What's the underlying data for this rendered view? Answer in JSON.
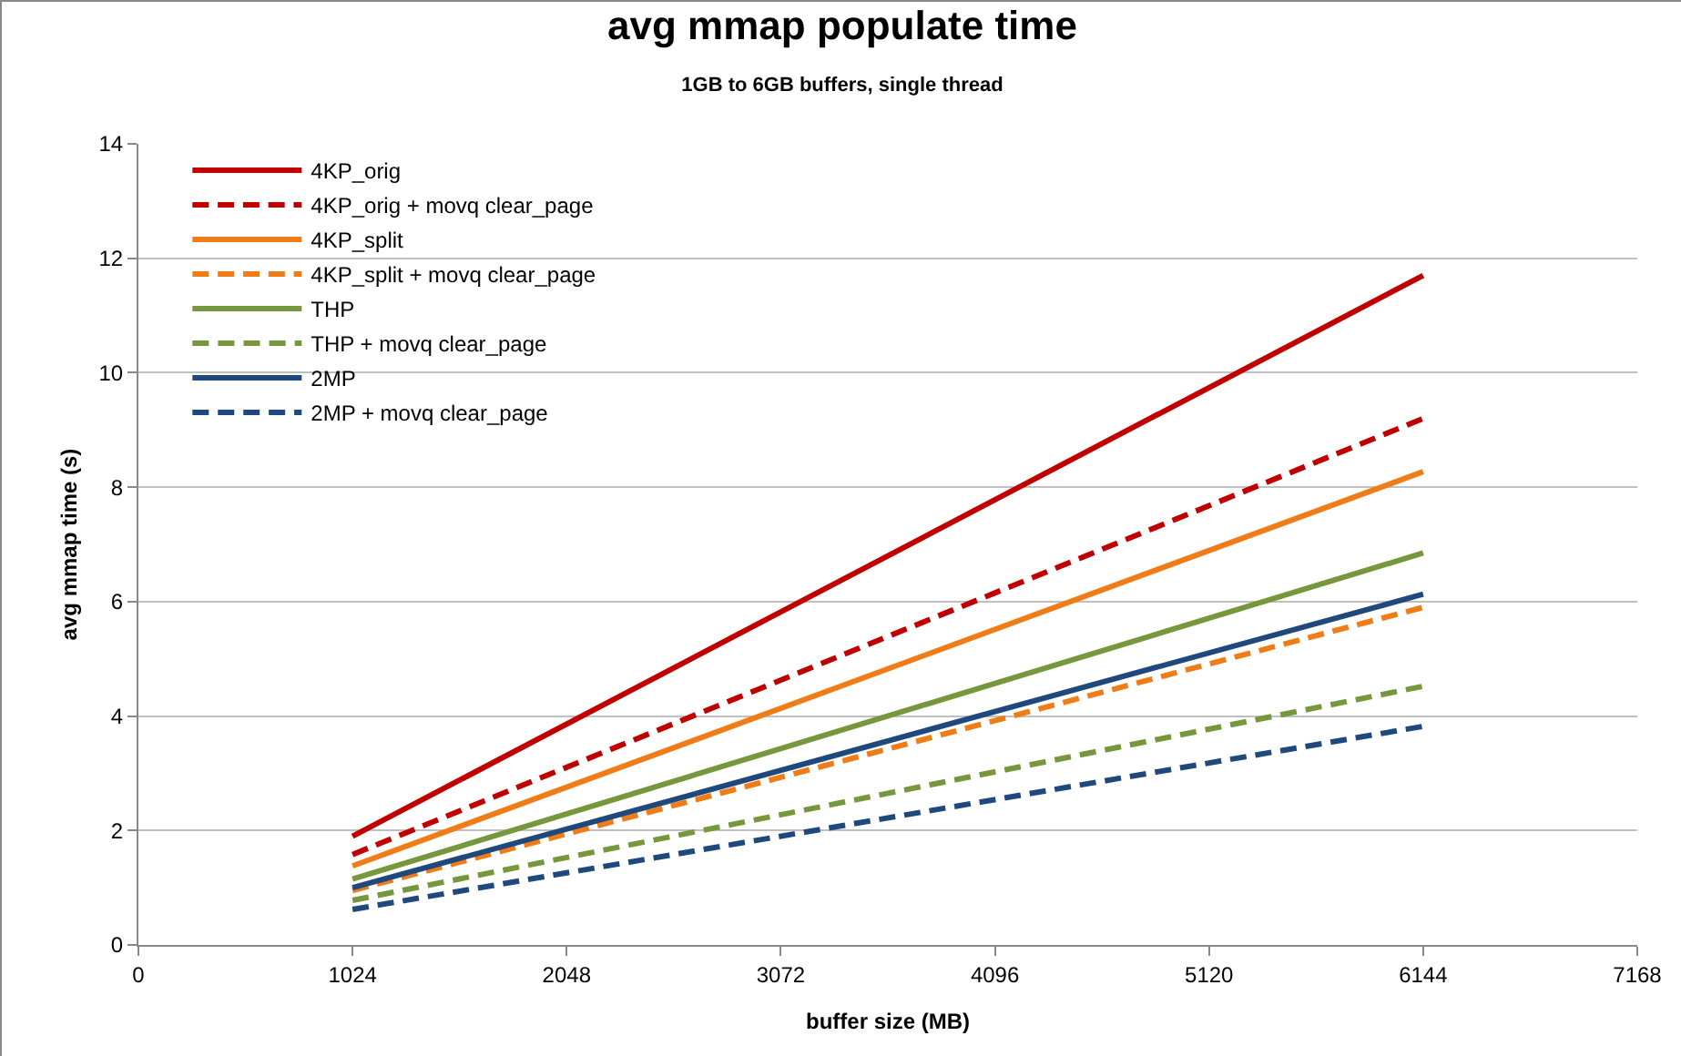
{
  "chart_data": {
    "type": "line",
    "title": "avg mmap populate time",
    "subtitle": "1GB to 6GB buffers, single thread",
    "xlabel": "buffer size (MB)",
    "ylabel": "avg mmap time (s)",
    "x": [
      1024,
      6144
    ],
    "series": [
      {
        "name": "4KP_orig",
        "color": "#c00000",
        "line_style": "solid",
        "values": [
          1.9,
          11.7
        ]
      },
      {
        "name": "4KP_orig + movq clear_page",
        "color": "#c00000",
        "line_style": "dashed",
        "values": [
          1.58,
          9.2
        ]
      },
      {
        "name": "4KP_split",
        "color": "#f07c18",
        "line_style": "solid",
        "values": [
          1.38,
          8.27
        ]
      },
      {
        "name": "4KP_split + movq clear_page",
        "color": "#f07c18",
        "line_style": "dashed",
        "values": [
          0.95,
          5.9
        ]
      },
      {
        "name": "THP",
        "color": "#77973c",
        "line_style": "solid",
        "values": [
          1.15,
          6.85
        ]
      },
      {
        "name": "THP + movq clear_page",
        "color": "#77973c",
        "line_style": "dashed",
        "values": [
          0.78,
          4.52
        ]
      },
      {
        "name": "2MP",
        "color": "#1f497d",
        "line_style": "solid",
        "values": [
          1.0,
          6.13
        ]
      },
      {
        "name": "2MP + movq clear_page",
        "color": "#1f497d",
        "line_style": "dashed",
        "values": [
          0.62,
          3.82
        ]
      }
    ],
    "xlim": [
      0,
      7168
    ],
    "xticks": [
      0,
      1024,
      2048,
      3072,
      4096,
      5120,
      6144,
      7168
    ],
    "ylim": [
      0,
      14
    ],
    "yticks": [
      0,
      2,
      4,
      6,
      8,
      10,
      12,
      14
    ],
    "grid": "y",
    "legend": "top left",
    "marker": "none"
  }
}
